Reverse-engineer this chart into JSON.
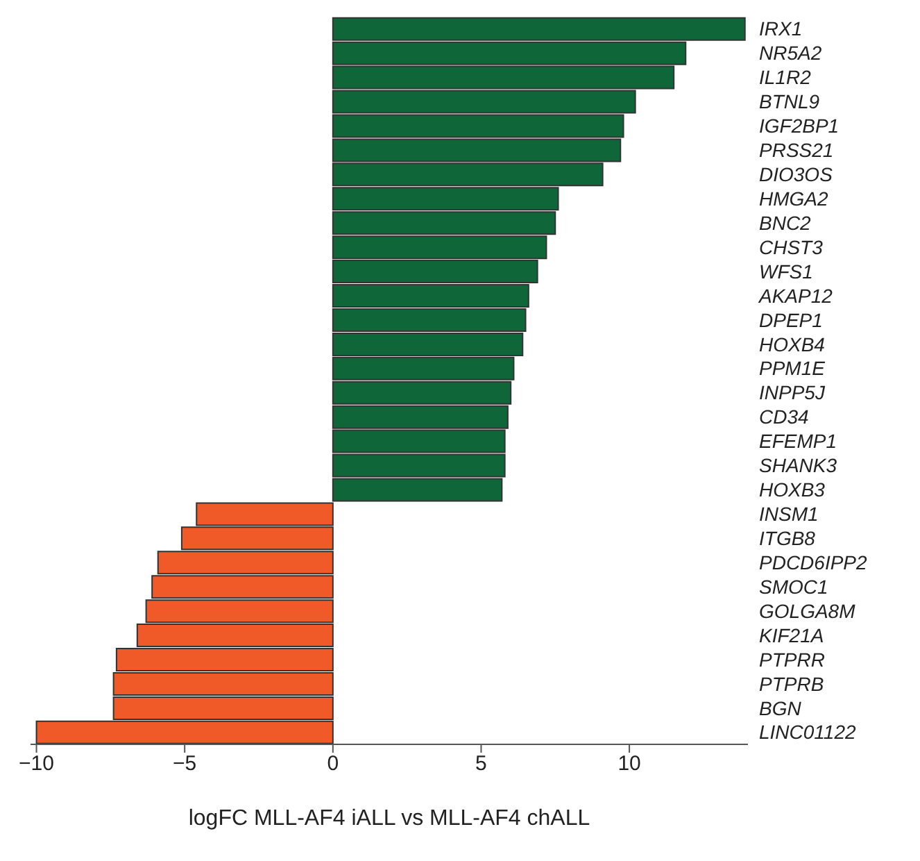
{
  "chart_data": {
    "type": "bar",
    "orientation": "horizontal",
    "xlabel": "logFC MLL-AF4 iALL vs MLL-AF4 chALL",
    "categories": [
      "IRX1",
      "NR5A2",
      "IL1R2",
      "BTNL9",
      "IGF2BP1",
      "PRSS21",
      "DIO3OS",
      "HMGA2",
      "BNC2",
      "CHST3",
      "WFS1",
      "AKAP12",
      "DPEP1",
      "HOXB4",
      "PPM1E",
      "INPP5J",
      "CD34",
      "EFEMP1",
      "SHANK3",
      "HOXB3",
      "INSM1",
      "ITGB8",
      "PDCD6IPP2",
      "SMOC1",
      "GOLGA8M",
      "KIF21A",
      "PTPRR",
      "PTPRB",
      "BGN",
      "LINC01122"
    ],
    "values": [
      13.9,
      11.9,
      11.5,
      10.2,
      9.8,
      9.7,
      9.1,
      7.6,
      7.5,
      7.2,
      6.9,
      6.6,
      6.5,
      6.4,
      6.1,
      6.0,
      5.9,
      5.8,
      5.8,
      5.7,
      -4.6,
      -5.1,
      -5.9,
      -6.1,
      -6.3,
      -6.6,
      -7.3,
      -7.4,
      -7.4,
      -10.0
    ],
    "colors": [
      "#0e6639",
      "#0e6639",
      "#0e6639",
      "#0e6639",
      "#0e6639",
      "#0e6639",
      "#0e6639",
      "#0e6639",
      "#0e6639",
      "#0e6639",
      "#0e6639",
      "#0e6639",
      "#0e6639",
      "#0e6639",
      "#0e6639",
      "#0e6639",
      "#0e6639",
      "#0e6639",
      "#0e6639",
      "#0e6639",
      "#f05a28",
      "#f05a28",
      "#f05a28",
      "#f05a28",
      "#f05a28",
      "#f05a28",
      "#f05a28",
      "#f05a28",
      "#f05a28",
      "#f05a28"
    ],
    "xlim": [
      -10.2,
      14
    ],
    "xticks": [
      -10,
      -5,
      0,
      5,
      10
    ],
    "grid": false,
    "legend": false
  }
}
